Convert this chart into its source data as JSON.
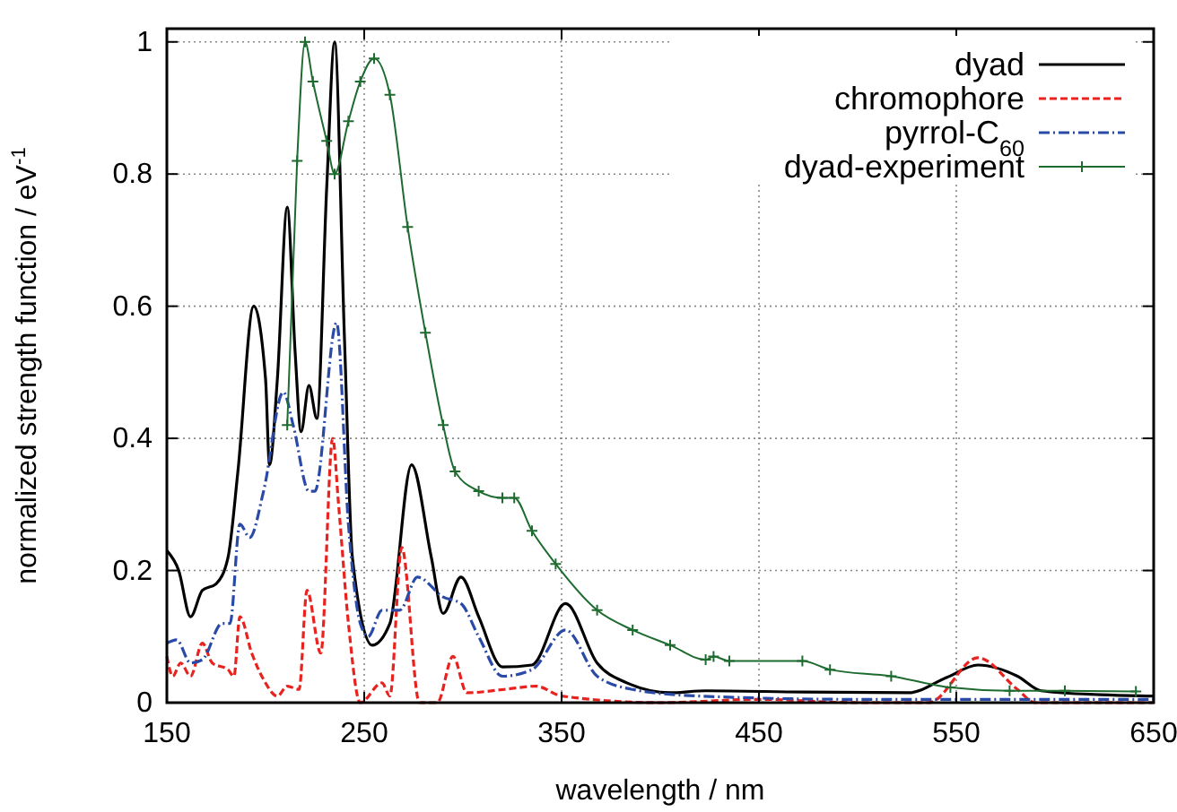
{
  "chart_data": {
    "type": "line",
    "xlabel": "wavelength / nm",
    "ylabel": "normalized strength function / eV$^{-1}$",
    "xlim": [
      150,
      650
    ],
    "ylim": [
      0,
      1.02
    ],
    "xticks": [
      150,
      250,
      350,
      450,
      550,
      650
    ],
    "yticks": [
      0,
      0.2,
      0.4,
      0.6,
      0.8,
      1
    ],
    "grid": true,
    "legend": "top right",
    "series": [
      {
        "name": "dyad",
        "color": "#000000",
        "line_style": "solid",
        "x": [
          150,
          156,
          162,
          168,
          175,
          181,
          186,
          194,
          200,
          202,
          206,
          211,
          215,
          218,
          222,
          226,
          231,
          235,
          240,
          244,
          254,
          263,
          274,
          284,
          290,
          299,
          308,
          320,
          335,
          352,
          368,
          383,
          405,
          423,
          472,
          526,
          545,
          561,
          581,
          593,
          623,
          650
        ],
        "values": [
          0.23,
          0.2,
          0.13,
          0.17,
          0.18,
          0.22,
          0.35,
          0.6,
          0.49,
          0.36,
          0.49,
          0.75,
          0.53,
          0.41,
          0.48,
          0.43,
          0.78,
          1.0,
          0.55,
          0.22,
          0.087,
          0.12,
          0.36,
          0.22,
          0.135,
          0.19,
          0.13,
          0.054,
          0.057,
          0.15,
          0.06,
          0.03,
          0.015,
          0.018,
          0.016,
          0.015,
          0.038,
          0.057,
          0.04,
          0.018,
          0.012,
          0.01
        ]
      },
      {
        "name": "chromophore",
        "color": "#e8231f",
        "line_style": "dashed",
        "x": [
          150,
          153,
          157,
          162,
          168,
          173,
          181,
          184,
          187,
          193,
          199,
          206,
          211,
          217,
          221,
          228,
          234,
          237,
          242,
          248,
          259,
          263,
          269,
          278,
          287,
          295,
          302,
          321,
          337,
          350,
          400,
          450,
          500,
          536,
          561,
          581,
          590,
          650
        ],
        "values": [
          0.07,
          0.04,
          0.06,
          0.04,
          0.09,
          0.06,
          0.05,
          0.04,
          0.13,
          0.075,
          0.035,
          0.01,
          0.025,
          0.02,
          0.17,
          0.075,
          0.4,
          0.3,
          0.12,
          0.0,
          0.03,
          0.01,
          0.235,
          0.0,
          0.0,
          0.07,
          0.015,
          0.02,
          0.025,
          0.01,
          0.0,
          0.005,
          0.0,
          0.0,
          0.068,
          0.02,
          0.0,
          0.0
        ]
      },
      {
        "name": "pyrrol-C$_{60}$",
        "color": "#2a4aa8",
        "line_style": "dashdot",
        "x": [
          150,
          155,
          162,
          168,
          178,
          182,
          187,
          192,
          199,
          209,
          214,
          222,
          225,
          236,
          242,
          248,
          252,
          259,
          268,
          277,
          290,
          299,
          308,
          320,
          335,
          352,
          368,
          386,
          420,
          500,
          650
        ],
        "values": [
          0.09,
          0.095,
          0.06,
          0.065,
          0.12,
          0.12,
          0.27,
          0.25,
          0.32,
          0.47,
          0.42,
          0.32,
          0.32,
          0.575,
          0.27,
          0.12,
          0.1,
          0.14,
          0.14,
          0.19,
          0.16,
          0.15,
          0.1,
          0.04,
          0.05,
          0.11,
          0.04,
          0.02,
          0.01,
          0.005,
          0.005
        ]
      },
      {
        "name": "dyad-experiment",
        "color": "#1e6b30",
        "line_style": "solid",
        "marker": "cross",
        "x": [
          211,
          216,
          220,
          224,
          231,
          235,
          242,
          248,
          255,
          263,
          272,
          281,
          290,
          296,
          308,
          320,
          326,
          335,
          347,
          368,
          386,
          405,
          423,
          427,
          435,
          472,
          486,
          517,
          547,
          577,
          605,
          641
        ],
        "values": [
          0.42,
          0.82,
          1.0,
          0.94,
          0.85,
          0.8,
          0.88,
          0.94,
          0.975,
          0.92,
          0.72,
          0.56,
          0.42,
          0.35,
          0.32,
          0.31,
          0.31,
          0.26,
          0.21,
          0.14,
          0.11,
          0.087,
          0.065,
          0.07,
          0.063,
          0.063,
          0.05,
          0.04,
          0.023,
          0.018,
          0.018,
          0.017
        ]
      }
    ]
  }
}
